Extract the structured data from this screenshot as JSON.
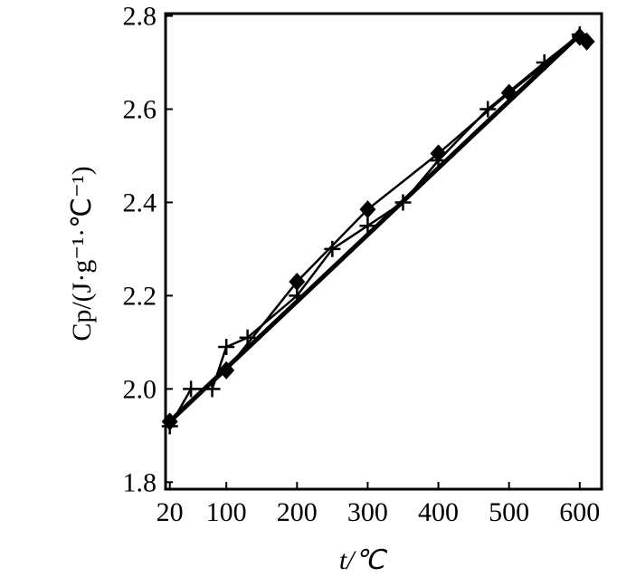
{
  "chart_data": {
    "type": "line",
    "x_label": "t/℃",
    "y_label": "Cp/(J·g⁻¹·℃⁻¹)",
    "xlim": [
      14,
      631
    ],
    "xticks": [
      20,
      100,
      200,
      300,
      400,
      500,
      600
    ],
    "ylim": [
      1.785,
      2.805
    ],
    "yticks": [
      {
        "value": 1.8,
        "label": "1.8"
      },
      {
        "value": 2.0,
        "label": "2.0"
      },
      2.2,
      2.4,
      2.6,
      {
        "value": 2.8,
        "label": "2.8"
      }
    ],
    "series": [
      {
        "color": "#000000",
        "marker": "diamond",
        "x": [
          20,
          100,
          200,
          300,
          400,
          500,
          600,
          610
        ],
        "values": [
          1.93,
          2.04,
          2.23,
          2.385,
          2.505,
          2.635,
          2.755,
          2.745
        ]
      },
      {
        "color": "#000000",
        "marker": "plus",
        "x": [
          20,
          50,
          80,
          100,
          130,
          200,
          250,
          300,
          350,
          400,
          470,
          550,
          600
        ],
        "values": [
          1.92,
          2.0,
          2.0,
          2.09,
          2.11,
          2.2,
          2.3,
          2.35,
          2.4,
          2.49,
          2.6,
          2.7,
          2.76
        ]
      },
      {
        "color": "#000000",
        "marker": "none",
        "x": [
          20,
          600
        ],
        "values": [
          1.93,
          2.76
        ]
      }
    ]
  }
}
